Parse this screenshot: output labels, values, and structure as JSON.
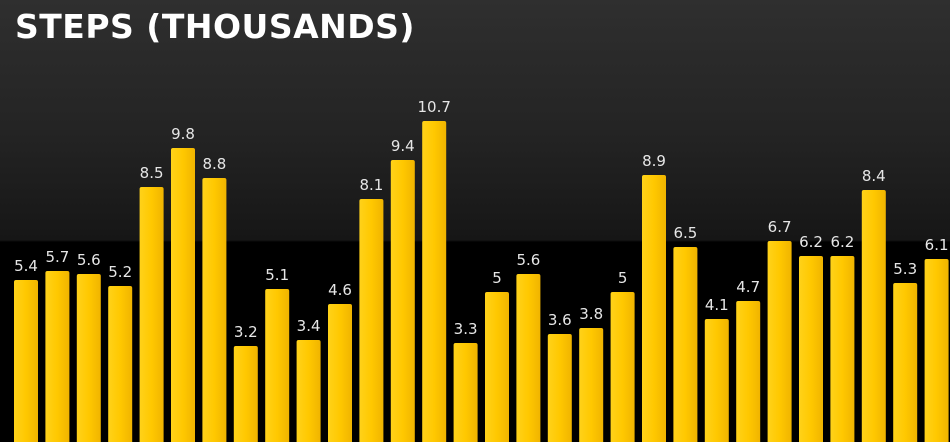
{
  "chart_data": {
    "type": "bar",
    "title": "STEPS (THOUSANDS)",
    "xlabel": "",
    "ylabel": "",
    "ylim": [
      0,
      11.6
    ],
    "grid": false,
    "legend": "none",
    "bar_color": "#ffc800",
    "label_color": "#e6e6e6",
    "values": [
      5.4,
      5.7,
      5.6,
      5.2,
      8.5,
      9.8,
      8.8,
      3.2,
      5.1,
      3.4,
      4.6,
      8.1,
      9.4,
      10.7,
      3.3,
      5,
      5.6,
      3.6,
      3.8,
      5,
      8.9,
      6.5,
      4.1,
      4.7,
      6.7,
      6.2,
      6.2,
      8.4,
      5.3,
      6.1
    ]
  }
}
